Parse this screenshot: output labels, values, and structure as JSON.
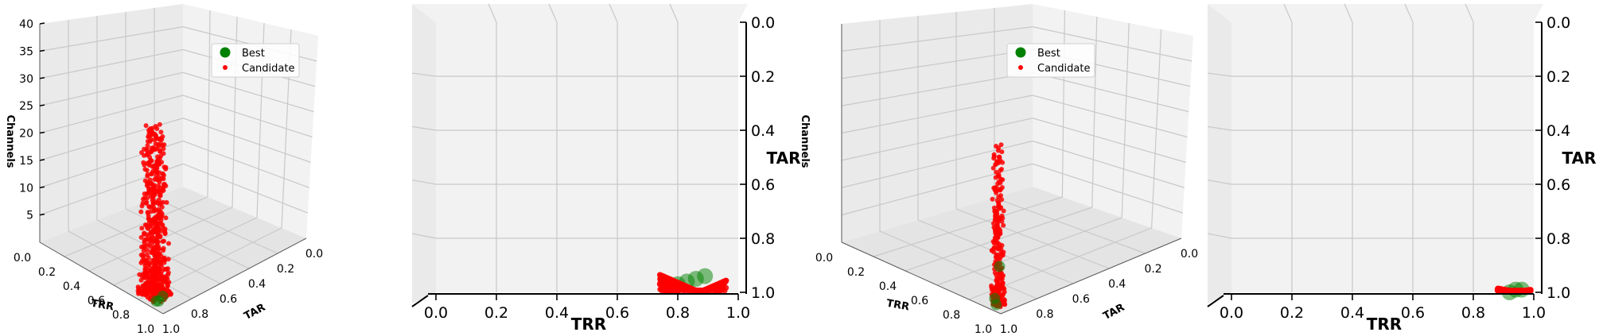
{
  "chart_data": [
    {
      "type": "scatter",
      "view": "3d-perspective",
      "xlabel": "TRR",
      "ylabel": "TAR",
      "zlabel": "Channels",
      "xlim": [
        0.0,
        1.0
      ],
      "ylim": [
        1.0,
        0.0
      ],
      "zlim": [
        0,
        40
      ],
      "x_ticks": [
        "0.0",
        "0.2",
        "0.4",
        "0.6",
        "0.8",
        "1.0"
      ],
      "y_ticks": [
        "1.0",
        "0.8",
        "0.6",
        "0.4",
        "0.2",
        "0.0"
      ],
      "z_ticks": [
        "5",
        "10",
        "15",
        "20",
        "25",
        "30",
        "35",
        "40"
      ],
      "legend": {
        "position": "top-center",
        "entries": [
          "Best",
          "Candidate"
        ]
      },
      "series": [
        {
          "name": "Best",
          "color": "#008000",
          "points": [
            [
              0.93,
              0.97,
              1
            ],
            [
              0.95,
              0.96,
              2
            ],
            [
              0.92,
              0.98,
              1
            ]
          ]
        },
        {
          "name": "Candidate",
          "color": "#ff0000",
          "cloud": {
            "trr_range": [
              0.78,
              0.95
            ],
            "tar_range": [
              0.88,
              1.0
            ],
            "channels_range": [
              1,
              32
            ],
            "count": 650
          }
        }
      ]
    },
    {
      "type": "scatter",
      "view": "projection-TRR-TAR",
      "xlabel": "TRR",
      "ylabel": "TAR",
      "xlim": [
        0.0,
        1.0
      ],
      "ylim": [
        0.0,
        1.0
      ],
      "x_ticks": [
        "0.0",
        "0.2",
        "0.4",
        "0.6",
        "0.8",
        "1.0"
      ],
      "y_ticks": [
        "0.0",
        "0.2",
        "0.4",
        "0.6",
        "0.8",
        "1.0"
      ],
      "series": [
        {
          "name": "Best",
          "color": "#008000",
          "points": [
            [
              0.83,
              0.96
            ],
            [
              0.86,
              0.95
            ],
            [
              0.89,
              0.94
            ],
            [
              0.8,
              0.97
            ]
          ]
        },
        {
          "name": "Candidate",
          "color": "#ff0000",
          "cloud": {
            "trr_range": [
              0.74,
              0.96
            ],
            "tar_range": [
              0.91,
              1.0
            ],
            "count": 600
          }
        }
      ]
    },
    {
      "type": "scatter",
      "view": "3d-perspective",
      "xlabel": "TRR",
      "ylabel": "TAR",
      "zlabel": "Channels",
      "xlim": [
        0.0,
        1.0
      ],
      "ylim": [
        1.0,
        0.0
      ],
      "zlim": [
        0,
        40
      ],
      "x_ticks": [
        "0.0",
        "0.2",
        "0.4",
        "0.6",
        "0.8",
        "1.0"
      ],
      "y_ticks": [
        "1.0",
        "0.8",
        "0.6",
        "0.4",
        "0.2",
        "0.0"
      ],
      "z_ticks": [],
      "legend": {
        "position": "top-center",
        "entries": [
          "Best",
          "Candidate"
        ]
      },
      "series": [
        {
          "name": "Best",
          "color": "#008000",
          "points": [
            [
              0.96,
              0.99,
              1
            ],
            [
              0.97,
              0.98,
              8
            ],
            [
              0.95,
              0.99,
              2
            ]
          ]
        },
        {
          "name": "Candidate",
          "color": "#ff0000",
          "cloud": {
            "trr_range": [
              0.93,
              0.99
            ],
            "tar_range": [
              0.96,
              1.0
            ],
            "channels_range": [
              1,
              30
            ],
            "count": 260
          }
        }
      ]
    },
    {
      "type": "scatter",
      "view": "projection-TRR-TAR",
      "xlabel": "TRR",
      "ylabel": "TAR",
      "xlim": [
        0.0,
        1.0
      ],
      "ylim": [
        0.0,
        1.0
      ],
      "x_ticks": [
        "0.0",
        "0.2",
        "0.4",
        "0.6",
        "0.8",
        "1.0"
      ],
      "y_ticks": [
        "0.0",
        "0.2",
        "0.4",
        "0.6",
        "0.8",
        "1.0"
      ],
      "series": [
        {
          "name": "Best",
          "color": "#008000",
          "points": [
            [
              0.94,
              0.99
            ],
            [
              0.96,
              0.99
            ],
            [
              0.92,
              1.0
            ]
          ]
        },
        {
          "name": "Candidate",
          "color": "#ff0000",
          "cloud": {
            "trr_range": [
              0.88,
              0.99
            ],
            "tar_range": [
              0.98,
              1.0
            ],
            "count": 200
          }
        }
      ]
    }
  ]
}
